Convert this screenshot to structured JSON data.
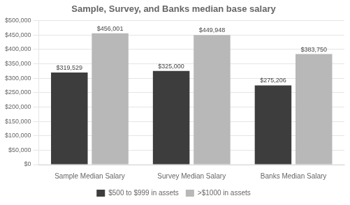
{
  "chart_data": {
    "type": "bar",
    "title": "Sample, Survey, and Banks median base salary",
    "categories": [
      "Sample Median Salary",
      "Survey Median Salary",
      "Banks Median Salary"
    ],
    "series": [
      {
        "name": "$500 to $999 in assets",
        "color": "#3d3d3d",
        "values": [
          319529,
          325000,
          275206
        ],
        "value_labels": [
          "$319,529",
          "$325,000",
          "$275,206"
        ]
      },
      {
        "name": ">$1000 in assets",
        "color": "#b8b8b8",
        "values": [
          456001,
          449948,
          383750
        ],
        "value_labels": [
          "$456,001",
          "$449,948",
          "$383,750"
        ]
      }
    ],
    "ylim": [
      0,
      500000
    ],
    "yticks": [
      {
        "value": 0,
        "label": "$0"
      },
      {
        "value": 50000,
        "label": "$50,000"
      },
      {
        "value": 100000,
        "label": "$100,000"
      },
      {
        "value": 150000,
        "label": "$150,000"
      },
      {
        "value": 200000,
        "label": "$200,000"
      },
      {
        "value": 250000,
        "label": "$250,000"
      },
      {
        "value": 300000,
        "label": "$300,000"
      },
      {
        "value": 350000,
        "label": "$350,000"
      },
      {
        "value": 400000,
        "label": "$400,000"
      },
      {
        "value": 450000,
        "label": "$450,000"
      },
      {
        "value": 500000,
        "label": "$500,000"
      }
    ],
    "grid": true,
    "legend": "bottom",
    "data_labels": true
  }
}
